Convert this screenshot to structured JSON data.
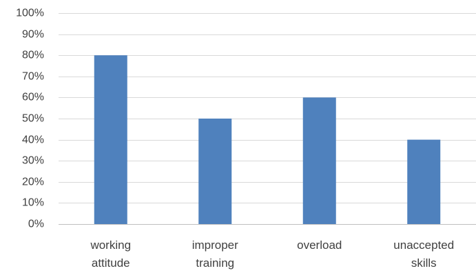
{
  "chart_data": {
    "type": "bar",
    "title": "",
    "xlabel": "",
    "ylabel": "",
    "categories": [
      [
        "working",
        "attitude"
      ],
      [
        "improper",
        "training"
      ],
      [
        "overload"
      ],
      [
        "unaccepted",
        "skills"
      ]
    ],
    "values": [
      80,
      50,
      60,
      40
    ],
    "ylim": [
      0,
      100
    ],
    "y_ticks": [
      0,
      10,
      20,
      30,
      40,
      50,
      60,
      70,
      80,
      90,
      100
    ],
    "y_tick_format": "percent",
    "grid": true,
    "legend": false,
    "bar_color": "#4f81bd"
  }
}
